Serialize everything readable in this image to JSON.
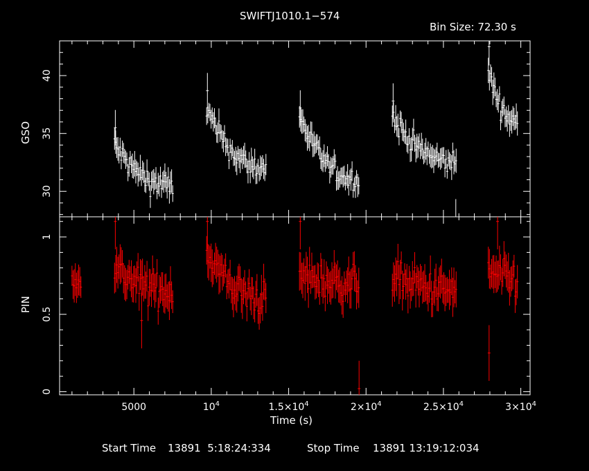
{
  "header": {
    "title": "SWIFTJ1010.1−574",
    "bin_size": "Bin Size: 72.30 s"
  },
  "footer": {
    "start_label": "Start Time",
    "start_value": "13891  5:18:24:334",
    "stop_label": "Stop Time",
    "stop_value": "13891 13:19:12:034"
  },
  "colors": {
    "background": "#000000",
    "frame": "#ffffff",
    "gso": "#ffffff",
    "pin": "#ff0000"
  },
  "chart_data": {
    "type": "scatter",
    "title": "SWIFTJ1010.1−574",
    "xlabel": "Time (s)",
    "x_unit": "s",
    "xlim": [
      200,
      30600
    ],
    "x_ticks": [
      {
        "value": 5000,
        "label": "5000"
      },
      {
        "value": 10000,
        "label": "10",
        "sup": "4"
      },
      {
        "value": 15000,
        "label": "1.5×10",
        "sup": "4"
      },
      {
        "value": 20000,
        "label": "2×10",
        "sup": "4"
      },
      {
        "value": 25000,
        "label": "2.5×10",
        "sup": "4"
      },
      {
        "value": 30000,
        "label": "3×10",
        "sup": "4"
      }
    ],
    "panels": [
      {
        "name": "GSO",
        "ylabel": "GSO",
        "ylim": [
          27.8,
          43
        ],
        "y_ticks": [
          30,
          35,
          40
        ],
        "color": "#ffffff",
        "segments": [
          {
            "x_start": 3750,
            "x_end": 7500,
            "y_start": 34.0,
            "y_end": 30.5,
            "y_tail": 30.3,
            "scatter": 1.0,
            "err": 0.85,
            "spike": [
              [
                3800,
                35.5
              ]
            ]
          },
          {
            "x_start": 9700,
            "x_end": 13500,
            "y_start": 37.0,
            "y_end": 32.0,
            "y_tail": 32.0,
            "scatter": 0.9,
            "err": 0.85,
            "spike": [
              [
                9750,
                38.7
              ]
            ]
          },
          {
            "x_start": 15700,
            "x_end": 19500,
            "y_start": 36.5,
            "y_end": 31.0,
            "y_tail": 31.0,
            "scatter": 0.8,
            "err": 0.85,
            "spike": [
              [
                15750,
                37.2
              ]
            ]
          },
          {
            "x_start": 21700,
            "x_end": 25800,
            "y_start": 36.5,
            "y_end": 32.5,
            "y_tail": 31.5,
            "scatter": 0.9,
            "err": 0.85,
            "spike": [
              [
                21750,
                37.8
              ],
              [
                25800,
                27.8
              ]
            ]
          },
          {
            "x_start": 27900,
            "x_end": 29800,
            "y_start": 40.5,
            "y_end": 36.0,
            "y_tail": 36.0,
            "scatter": 0.8,
            "err": 0.9,
            "spike": [
              [
                27950,
                42.5
              ]
            ]
          }
        ]
      },
      {
        "name": "PIN",
        "ylabel": "PIN",
        "ylim": [
          -0.02,
          1.13
        ],
        "y_ticks": [
          0,
          0.5,
          1
        ],
        "color": "#ff0000",
        "segments": [
          {
            "x_start": 1000,
            "x_end": 1600,
            "y_start": 0.74,
            "y_end": 0.72,
            "y_tail": 0.72,
            "scatter": 0.05,
            "err": 0.09,
            "spike": []
          },
          {
            "x_start": 3750,
            "x_end": 7500,
            "y_start": 0.8,
            "y_end": 0.65,
            "y_tail": 0.65,
            "scatter": 0.1,
            "err": 0.1,
            "spike": [
              [
                3800,
                1.1
              ],
              [
                5500,
                0.46
              ]
            ]
          },
          {
            "x_start": 9700,
            "x_end": 13500,
            "y_start": 0.9,
            "y_end": 0.6,
            "y_tail": 0.6,
            "scatter": 0.1,
            "err": 0.1,
            "spike": [
              [
                9750,
                1.1
              ]
            ]
          },
          {
            "x_start": 15700,
            "x_end": 19500,
            "y_start": 0.75,
            "y_end": 0.7,
            "y_tail": 0.7,
            "scatter": 0.1,
            "err": 0.1,
            "spike": [
              [
                15750,
                1.1
              ],
              [
                19550,
                0.02
              ]
            ]
          },
          {
            "x_start": 21700,
            "x_end": 25800,
            "y_start": 0.75,
            "y_end": 0.65,
            "y_tail": 0.62,
            "scatter": 0.1,
            "err": 0.1,
            "spike": []
          },
          {
            "x_start": 27900,
            "x_end": 29800,
            "y_start": 0.78,
            "y_end": 0.72,
            "y_tail": 0.72,
            "scatter": 0.1,
            "err": 0.1,
            "spike": [
              [
                27950,
                0.25
              ],
              [
                28500,
                1.1
              ]
            ]
          }
        ]
      }
    ],
    "grid": false
  }
}
